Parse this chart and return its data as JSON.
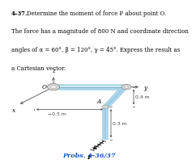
{
  "title_number": "4-37.",
  "title_text": "Determine the moment of force F about point O.",
  "line2": "The force has a magnitude of 800 N and coordinate direction",
  "line3": "angles of α = 60°, β = 120°, γ = 45°. Express the result as",
  "line4": "a Cartesian vector.",
  "caption": "Probs. 4-36/37",
  "bg_color": "#ffffff",
  "text_color": "#000000",
  "caption_color": "#1155cc",
  "axis_color": "#666666",
  "beam_color": "#a8d4ea",
  "beam_dark": "#5a9ec0",
  "beam_highlight": "#cce8f5",
  "joint_color": "#d8d8d8",
  "force_color": "#1a1a1a",
  "dim_color": "#444444",
  "label_fs": 5.2,
  "title_fs": 5.0,
  "caption_fs": 5.8
}
